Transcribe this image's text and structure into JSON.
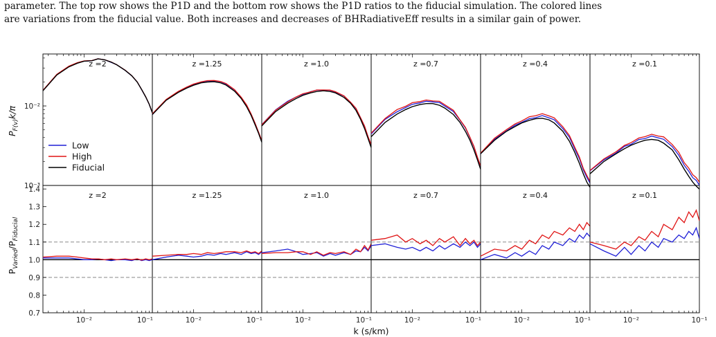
{
  "caption": {
    "line1": "parameter. The top row shows the P1D and the bottom row shows the P1D ratios to the fiducial simulation. The colored lines",
    "line2": "are variations from the fiducial value. Both increases and decreases of BHRadiativeEff results in a similar gain of power."
  },
  "colors": {
    "low": "#1f1fd6",
    "high": "#e01414",
    "fiducial": "#000000",
    "reference": "#888888"
  },
  "chart_data": {
    "type": "line",
    "xlabel": "k (s/km)",
    "top_ylabel": "P_F(v) k/π",
    "bottom_ylabel": "P_Varied/P_Fiducial",
    "xscale": "log",
    "xlim": [
      0.0025,
      0.1
    ],
    "x_ticks": [
      "10⁻²",
      "10⁻¹"
    ],
    "top_yscale": "log",
    "top_ylim": [
      0.001,
      0.045
    ],
    "top_y_ticks": [
      "10⁻²",
      "10⁻³"
    ],
    "bottom_ylim": [
      0.7,
      1.42
    ],
    "bottom_y_ticks": [
      "1.4",
      "1.3",
      "1.2",
      "1.1",
      "1.0",
      "0.9",
      "0.8",
      "0.7"
    ],
    "reference_lines": [
      0.9,
      1.0,
      1.1
    ],
    "legend": {
      "placement": "lower-left of first top panel",
      "entries": [
        "Low",
        "High",
        "Fiducial"
      ]
    },
    "panels": [
      {
        "z_label": "z =2",
        "k": [
          0.0025,
          0.004,
          0.006,
          0.008,
          0.01,
          0.013,
          0.016,
          0.02,
          0.025,
          0.03,
          0.04,
          0.05,
          0.06,
          0.07,
          0.08,
          0.09,
          0.1
        ],
        "p_fiducial": [
          0.0155,
          0.0245,
          0.031,
          0.0345,
          0.0365,
          0.037,
          0.039,
          0.038,
          0.0355,
          0.033,
          0.028,
          0.024,
          0.02,
          0.016,
          0.013,
          0.0105,
          0.0082
        ],
        "ratio_low": [
          1.01,
          1.01,
          1.01,
          1.005,
          1.0,
          1.0,
          1.005,
          1.0,
          0.995,
          1.0,
          1.0,
          0.995,
          1.005,
          0.995,
          1.0,
          0.995,
          1.0
        ],
        "ratio_high": [
          1.015,
          1.02,
          1.02,
          1.015,
          1.01,
          1.005,
          1.005,
          1.0,
          1.005,
          1.0,
          1.005,
          1.0,
          1.005,
          0.998,
          1.005,
          1.0,
          1.005
        ]
      },
      {
        "z_label": "z =1.25",
        "k": [
          0.0025,
          0.004,
          0.006,
          0.008,
          0.01,
          0.013,
          0.016,
          0.02,
          0.025,
          0.03,
          0.04,
          0.05,
          0.06,
          0.07,
          0.08,
          0.09,
          0.1
        ],
        "p_fiducial": [
          0.0078,
          0.0118,
          0.0148,
          0.0168,
          0.0182,
          0.0195,
          0.02,
          0.0202,
          0.0195,
          0.0183,
          0.0153,
          0.0124,
          0.0098,
          0.0076,
          0.0058,
          0.0045,
          0.0035
        ],
        "ratio_low": [
          1.0,
          1.015,
          1.025,
          1.02,
          1.015,
          1.02,
          1.03,
          1.025,
          1.035,
          1.03,
          1.04,
          1.03,
          1.045,
          1.035,
          1.04,
          1.03,
          1.045
        ],
        "ratio_high": [
          1.02,
          1.025,
          1.03,
          1.03,
          1.035,
          1.03,
          1.04,
          1.035,
          1.04,
          1.045,
          1.045,
          1.04,
          1.05,
          1.04,
          1.045,
          1.035,
          1.05
        ]
      },
      {
        "z_label": "z =1.0",
        "k": [
          0.0025,
          0.004,
          0.006,
          0.008,
          0.01,
          0.013,
          0.016,
          0.02,
          0.025,
          0.03,
          0.04,
          0.05,
          0.06,
          0.07,
          0.08,
          0.09,
          0.1
        ],
        "p_fiducial": [
          0.0056,
          0.0085,
          0.0108,
          0.0124,
          0.0136,
          0.0146,
          0.0152,
          0.0155,
          0.0152,
          0.0146,
          0.0128,
          0.0108,
          0.0088,
          0.0068,
          0.0052,
          0.0039,
          0.003
        ],
        "ratio_low": [
          1.04,
          1.05,
          1.06,
          1.045,
          1.03,
          1.035,
          1.04,
          1.02,
          1.035,
          1.025,
          1.04,
          1.03,
          1.05,
          1.045,
          1.07,
          1.05,
          1.08
        ],
        "ratio_high": [
          1.035,
          1.04,
          1.04,
          1.045,
          1.045,
          1.03,
          1.045,
          1.025,
          1.04,
          1.035,
          1.045,
          1.03,
          1.06,
          1.045,
          1.08,
          1.055,
          1.09
        ]
      },
      {
        "z_label": "z =0.7",
        "k": [
          0.0025,
          0.004,
          0.006,
          0.008,
          0.01,
          0.013,
          0.016,
          0.02,
          0.025,
          0.03,
          0.04,
          0.05,
          0.06,
          0.07,
          0.08,
          0.09,
          0.1
        ],
        "p_fiducial": [
          0.0041,
          0.0062,
          0.0079,
          0.009,
          0.0098,
          0.0104,
          0.0107,
          0.0107,
          0.0102,
          0.0094,
          0.0078,
          0.0062,
          0.0048,
          0.0037,
          0.0028,
          0.0021,
          0.0016
        ],
        "ratio_low": [
          1.08,
          1.09,
          1.07,
          1.06,
          1.07,
          1.05,
          1.07,
          1.05,
          1.08,
          1.06,
          1.09,
          1.07,
          1.1,
          1.08,
          1.1,
          1.07,
          1.09
        ],
        "ratio_high": [
          1.11,
          1.12,
          1.14,
          1.1,
          1.12,
          1.09,
          1.11,
          1.08,
          1.12,
          1.1,
          1.13,
          1.08,
          1.12,
          1.09,
          1.11,
          1.08,
          1.1
        ]
      },
      {
        "z_label": "z =0.4",
        "k": [
          0.0025,
          0.004,
          0.006,
          0.008,
          0.01,
          0.013,
          0.016,
          0.02,
          0.025,
          0.03,
          0.04,
          0.05,
          0.06,
          0.07,
          0.08,
          0.09,
          0.1
        ],
        "p_fiducial": [
          0.0025,
          0.0037,
          0.0048,
          0.0055,
          0.0061,
          0.0066,
          0.0069,
          0.007,
          0.0067,
          0.0061,
          0.0048,
          0.0036,
          0.0026,
          0.0019,
          0.0014,
          0.0011,
          0.00095
        ],
        "ratio_low": [
          1.0,
          1.03,
          1.01,
          1.04,
          1.02,
          1.05,
          1.03,
          1.08,
          1.06,
          1.1,
          1.08,
          1.12,
          1.1,
          1.14,
          1.12,
          1.15,
          1.13
        ],
        "ratio_high": [
          1.02,
          1.06,
          1.05,
          1.08,
          1.06,
          1.11,
          1.09,
          1.14,
          1.12,
          1.16,
          1.14,
          1.18,
          1.16,
          1.2,
          1.17,
          1.21,
          1.19
        ]
      },
      {
        "z_label": "z =0.1",
        "k": [
          0.0025,
          0.004,
          0.006,
          0.008,
          0.01,
          0.013,
          0.016,
          0.02,
          0.025,
          0.03,
          0.04,
          0.05,
          0.06,
          0.07,
          0.08,
          0.09,
          0.1
        ],
        "p_fiducial": [
          0.0014,
          0.002,
          0.0025,
          0.0029,
          0.0032,
          0.0035,
          0.0037,
          0.0038,
          0.0037,
          0.0034,
          0.0028,
          0.0021,
          0.0016,
          0.0013,
          0.0011,
          0.00098,
          0.0009
        ],
        "ratio_low": [
          1.09,
          1.05,
          1.02,
          1.07,
          1.03,
          1.08,
          1.05,
          1.1,
          1.07,
          1.12,
          1.1,
          1.14,
          1.12,
          1.16,
          1.14,
          1.18,
          1.12
        ],
        "ratio_high": [
          1.1,
          1.08,
          1.06,
          1.1,
          1.08,
          1.13,
          1.11,
          1.16,
          1.13,
          1.2,
          1.17,
          1.24,
          1.21,
          1.27,
          1.24,
          1.28,
          1.22
        ]
      }
    ]
  }
}
